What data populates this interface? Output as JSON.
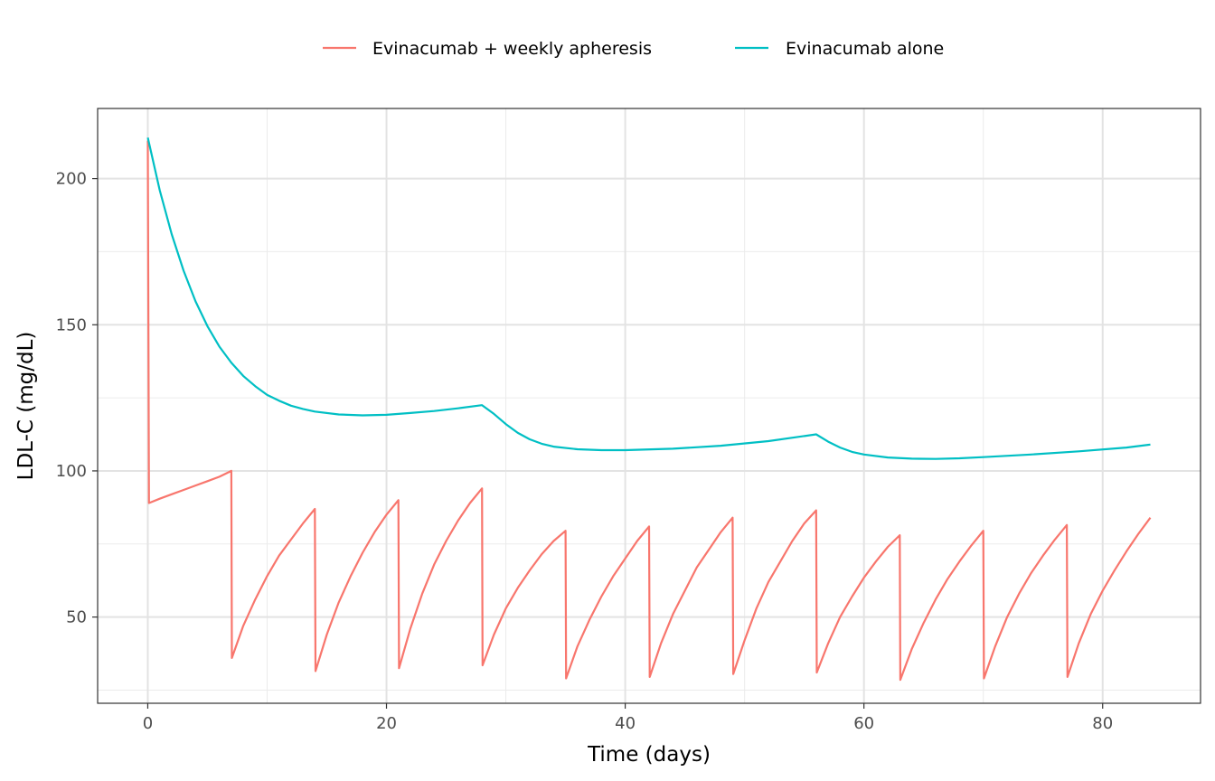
{
  "chart_data": {
    "type": "line",
    "title": "",
    "xlabel": "Time (days)",
    "ylabel": "LDL-C (mg/dL)",
    "xlim": [
      -4.2,
      88.2
    ],
    "ylim": [
      20.5,
      224
    ],
    "xticks": [
      0,
      20,
      40,
      60,
      80
    ],
    "yticks": [
      50,
      100,
      150,
      200
    ],
    "x_tick_labels": [
      "0",
      "20",
      "40",
      "60",
      "80"
    ],
    "y_tick_labels": [
      "50",
      "100",
      "150",
      "200"
    ],
    "grid": true,
    "legend_position": "top",
    "series": [
      {
        "name": "Evinacumab + weekly apheresis",
        "color": "#F8766D",
        "points": [
          [
            0,
            213
          ],
          [
            0.1,
            89
          ],
          [
            1,
            90.5
          ],
          [
            2,
            92
          ],
          [
            3,
            93.5
          ],
          [
            4,
            95
          ],
          [
            5,
            96.5
          ],
          [
            6,
            98
          ],
          [
            7,
            100
          ],
          [
            7.05,
            36
          ],
          [
            8,
            47
          ],
          [
            9,
            56
          ],
          [
            10,
            64
          ],
          [
            11,
            71
          ],
          [
            12,
            76.5
          ],
          [
            13,
            82
          ],
          [
            14,
            87
          ],
          [
            14.05,
            31.5
          ],
          [
            15,
            44
          ],
          [
            16,
            55
          ],
          [
            17,
            64
          ],
          [
            18,
            72
          ],
          [
            19,
            79
          ],
          [
            20,
            85
          ],
          [
            21,
            90
          ],
          [
            21.05,
            32.5
          ],
          [
            22,
            46
          ],
          [
            23,
            58
          ],
          [
            24,
            68
          ],
          [
            25,
            76
          ],
          [
            26,
            83
          ],
          [
            27,
            89
          ],
          [
            28,
            94
          ],
          [
            28.05,
            33.5
          ],
          [
            29,
            44
          ],
          [
            30,
            53
          ],
          [
            31,
            60
          ],
          [
            32,
            66
          ],
          [
            33,
            71.5
          ],
          [
            34,
            76
          ],
          [
            35,
            79.5
          ],
          [
            35.05,
            29
          ],
          [
            36,
            40
          ],
          [
            37,
            49
          ],
          [
            38,
            57
          ],
          [
            39,
            64
          ],
          [
            40,
            70
          ],
          [
            41,
            76
          ],
          [
            42,
            81
          ],
          [
            42.05,
            29.5
          ],
          [
            43,
            41
          ],
          [
            44,
            51
          ],
          [
            45,
            59
          ],
          [
            46,
            67
          ],
          [
            47,
            73
          ],
          [
            48,
            79
          ],
          [
            49,
            84
          ],
          [
            49.05,
            30.5
          ],
          [
            50,
            42
          ],
          [
            51,
            53
          ],
          [
            52,
            62
          ],
          [
            53,
            69
          ],
          [
            54,
            76
          ],
          [
            55,
            82
          ],
          [
            56,
            86.5
          ],
          [
            56.05,
            31
          ],
          [
            57,
            41
          ],
          [
            58,
            50
          ],
          [
            59,
            57
          ],
          [
            60,
            63.5
          ],
          [
            61,
            69
          ],
          [
            62,
            74
          ],
          [
            63,
            78
          ],
          [
            63.05,
            28.5
          ],
          [
            64,
            39
          ],
          [
            65,
            48
          ],
          [
            66,
            56
          ],
          [
            67,
            63
          ],
          [
            68,
            69
          ],
          [
            69,
            74.5
          ],
          [
            70,
            79.5
          ],
          [
            70.05,
            29
          ],
          [
            71,
            40
          ],
          [
            72,
            50
          ],
          [
            73,
            58
          ],
          [
            74,
            65
          ],
          [
            75,
            71
          ],
          [
            76,
            76.5
          ],
          [
            77,
            81.5
          ],
          [
            77.05,
            29.5
          ],
          [
            78,
            41
          ],
          [
            79,
            51
          ],
          [
            80,
            59
          ],
          [
            81,
            66
          ],
          [
            82,
            72.5
          ],
          [
            83,
            78.5
          ],
          [
            84,
            84
          ]
        ]
      },
      {
        "name": "Evinacumab alone",
        "color": "#00BFC4",
        "points": [
          [
            0,
            214
          ],
          [
            1,
            196
          ],
          [
            2,
            181
          ],
          [
            3,
            168.5
          ],
          [
            4,
            158
          ],
          [
            5,
            149.5
          ],
          [
            6,
            142.5
          ],
          [
            7,
            137
          ],
          [
            8,
            132.5
          ],
          [
            9,
            129
          ],
          [
            10,
            126
          ],
          [
            11,
            124
          ],
          [
            12,
            122.3
          ],
          [
            13,
            121.2
          ],
          [
            14,
            120.3
          ],
          [
            16,
            119.3
          ],
          [
            18,
            119
          ],
          [
            20,
            119.2
          ],
          [
            22,
            119.8
          ],
          [
            24,
            120.5
          ],
          [
            26,
            121.4
          ],
          [
            28,
            122.5
          ],
          [
            29,
            119.5
          ],
          [
            30,
            116
          ],
          [
            31,
            113
          ],
          [
            32,
            110.8
          ],
          [
            33,
            109.3
          ],
          [
            34,
            108.3
          ],
          [
            36,
            107.4
          ],
          [
            38,
            107.1
          ],
          [
            40,
            107.1
          ],
          [
            44,
            107.6
          ],
          [
            48,
            108.6
          ],
          [
            52,
            110.2
          ],
          [
            56,
            112.5
          ],
          [
            57,
            110
          ],
          [
            58,
            108
          ],
          [
            59,
            106.5
          ],
          [
            60,
            105.6
          ],
          [
            62,
            104.6
          ],
          [
            64,
            104.2
          ],
          [
            66,
            104.1
          ],
          [
            68,
            104.3
          ],
          [
            70,
            104.7
          ],
          [
            74,
            105.6
          ],
          [
            78,
            106.7
          ],
          [
            82,
            108
          ],
          [
            84,
            109
          ]
        ]
      }
    ]
  }
}
